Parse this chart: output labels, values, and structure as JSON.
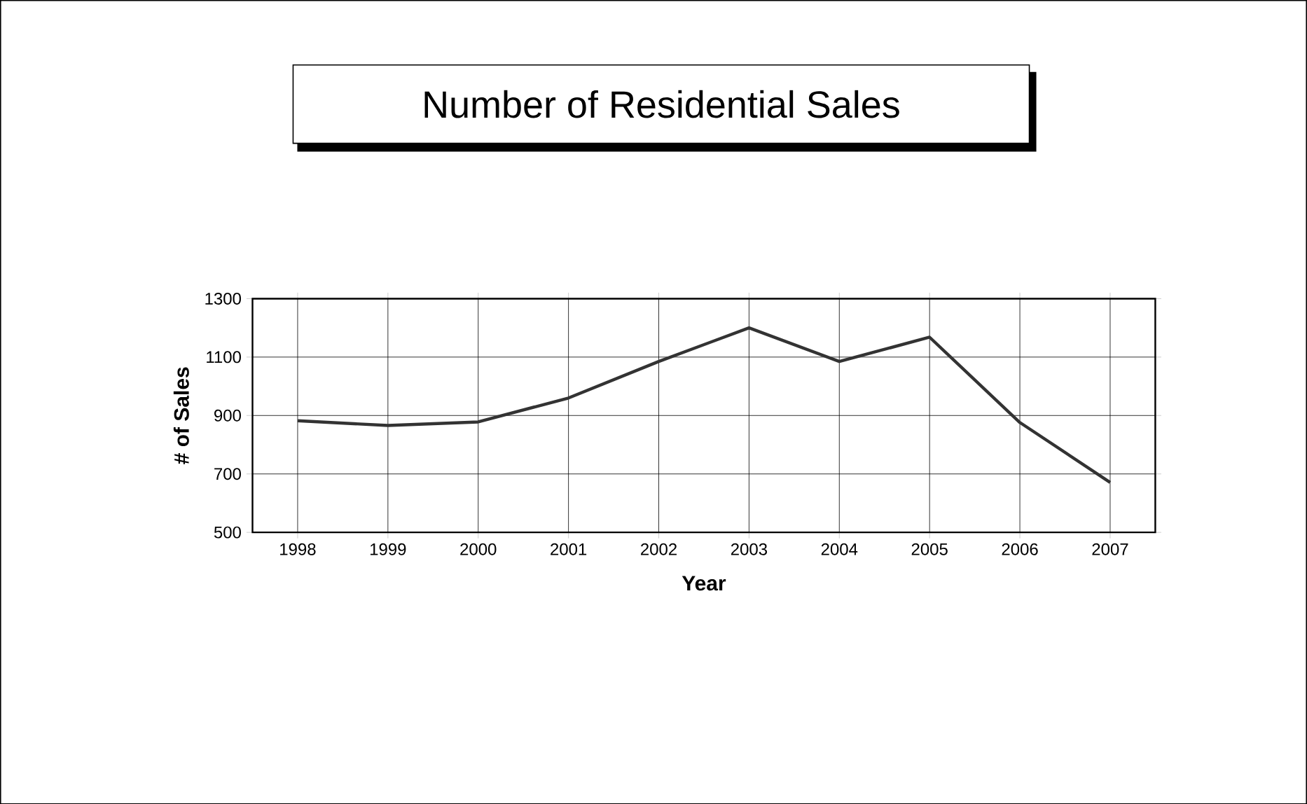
{
  "chart_data": {
    "type": "line",
    "title": "Number of Residential Sales",
    "xlabel": "Year",
    "ylabel": "# of Sales",
    "categories": [
      "1998",
      "1999",
      "2000",
      "2001",
      "2002",
      "2003",
      "2004",
      "2005",
      "2006",
      "2007"
    ],
    "series": [
      {
        "color": "#333333",
        "values": [
          882,
          866,
          878,
          960,
          1085,
          1200,
          1085,
          1168,
          876,
          671
        ]
      }
    ],
    "ylim": [
      500,
      1300
    ],
    "yticks": [
      500,
      700,
      900,
      1100,
      1300
    ],
    "grid": true,
    "marker": "none",
    "line_style": "solid"
  }
}
